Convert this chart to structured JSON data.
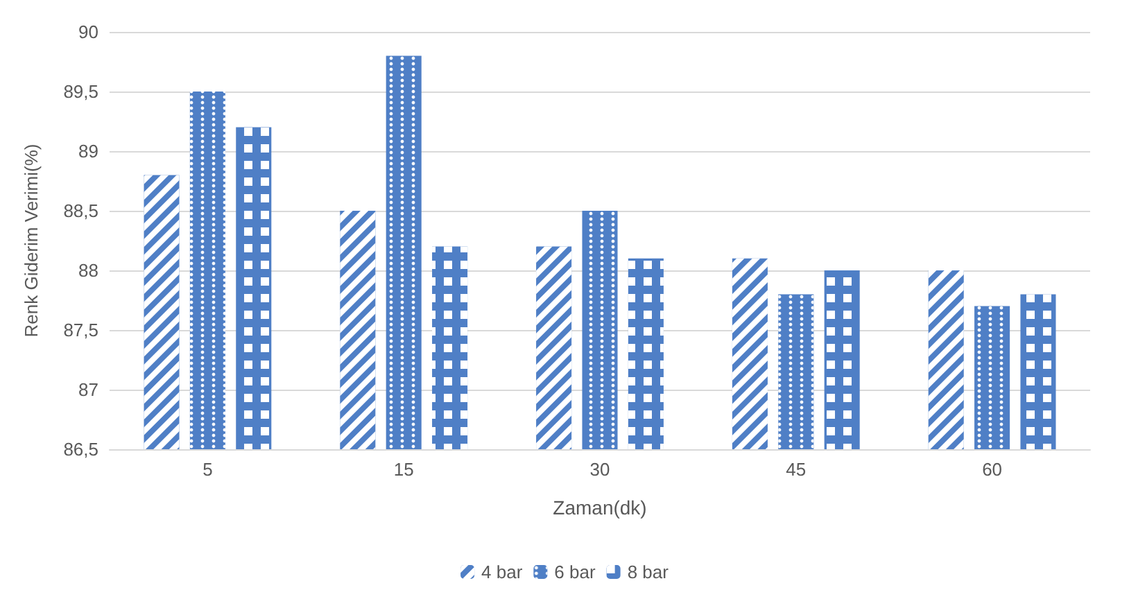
{
  "chart_data": {
    "type": "bar",
    "xlabel": "Zaman(dk)",
    "ylabel": "Renk Giderim Verimi(%)",
    "categories": [
      "5",
      "15",
      "30",
      "45",
      "60"
    ],
    "series": [
      {
        "name": "4 bar",
        "color": "#4f7fc6",
        "values": [
          88.8,
          88.5,
          88.2,
          88.1,
          88.0
        ]
      },
      {
        "name": "6 bar",
        "color": "#4f7fc6",
        "values": [
          89.5,
          89.8,
          88.5,
          87.8,
          87.7
        ]
      },
      {
        "name": "8 bar",
        "color": "#4f7fc6",
        "values": [
          89.2,
          88.2,
          88.1,
          88.0,
          87.8
        ]
      }
    ],
    "ylim": [
      86.5,
      90
    ],
    "yticks": [
      {
        "value": 86.5,
        "label": "86,5"
      },
      87,
      {
        "value": 87.5,
        "label": "87,5"
      },
      88,
      {
        "value": 88.5,
        "label": "88,5"
      },
      89,
      {
        "value": 89.5,
        "label": "89,5"
      },
      90
    ],
    "grid": "y",
    "legend": "bottom"
  }
}
